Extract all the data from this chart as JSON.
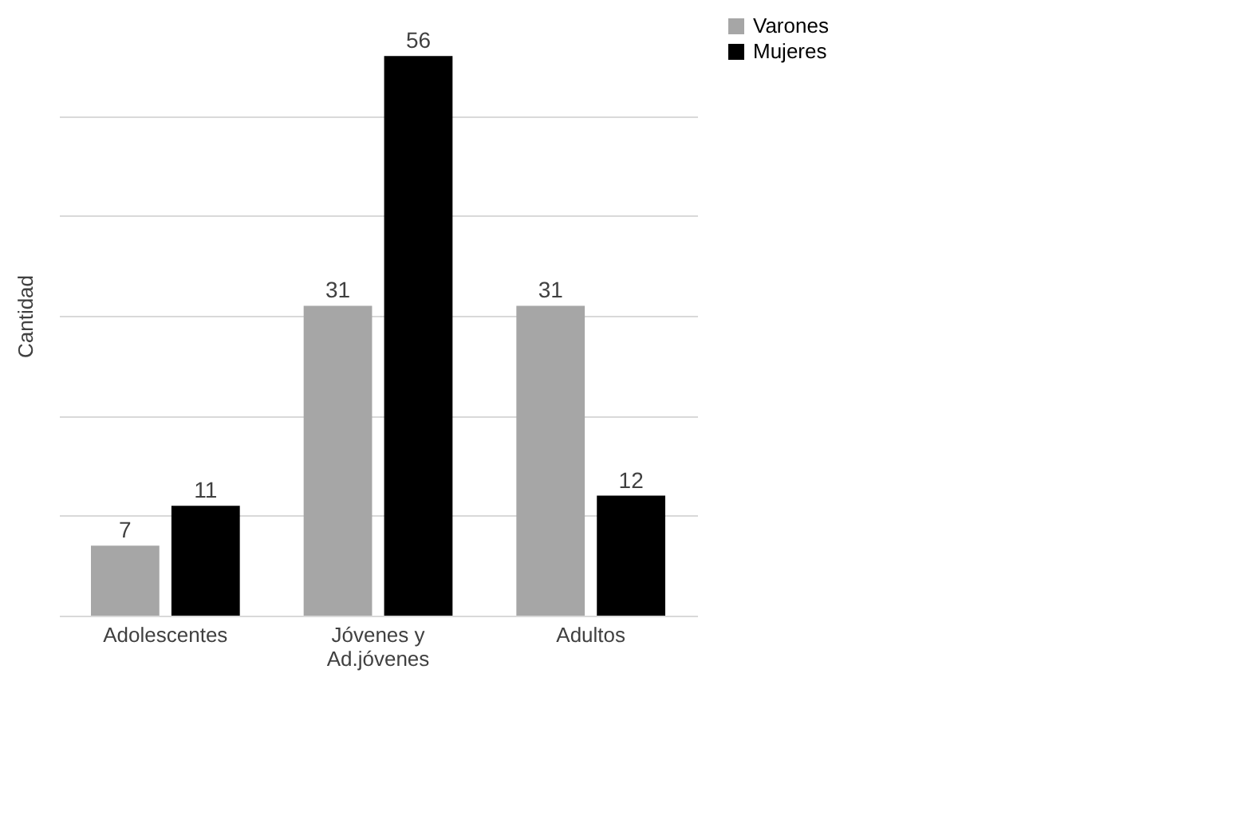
{
  "chart_data": {
    "type": "bar",
    "ylabel": "Cantidad",
    "categories": [
      "Adolescentes",
      "Jóvenes y Ad.jóvenes",
      "Adultos"
    ],
    "series": [
      {
        "name": "Varones",
        "color": "#a6a6a6",
        "values": [
          7,
          31,
          31
        ]
      },
      {
        "name": "Mujeres",
        "color": "#000000",
        "values": [
          11,
          56,
          12
        ]
      }
    ],
    "yticks": [
      {
        "value": 0,
        "label": null
      },
      {
        "value": 10,
        "label": null
      },
      {
        "value": 20,
        "label": null
      },
      {
        "value": 30,
        "label": null
      },
      {
        "value": 40,
        "label": null
      },
      {
        "value": 50,
        "label": null
      }
    ],
    "grid": "y",
    "legend": "right",
    "data_labels": true
  }
}
